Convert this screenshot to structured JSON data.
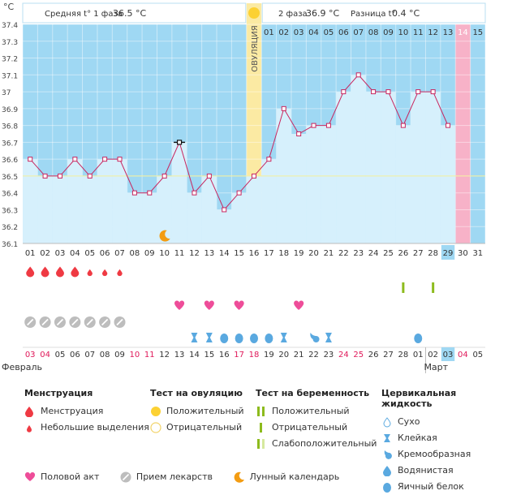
{
  "header": {
    "phase1_label": "Средняя t° 1 фаза",
    "phase1_value": "36.5 °C",
    "phase2_label": "2 фаза",
    "phase2_value": "36.9 °C",
    "diff_label": "Разница t°",
    "diff_value": "0.4 °C",
    "unit": "°C",
    "ovulation_label": "ОВУЛЯЦИЯ"
  },
  "colors": {
    "phase_bg": "#9fd8f3",
    "bar_fill": "#d6f0fc",
    "line": "#c8265f",
    "ovulation": "#fbeaa3",
    "highlight": "#f7b2c8",
    "today": "#9fd8f3",
    "menstruation": "#ef3a43",
    "sex": "#ee4d99",
    "pill": "#bdbdbd",
    "fluid": "#5aa9e0",
    "test_positive": "#8dbb1d",
    "moon": "#f39c12"
  },
  "chart_data": {
    "type": "line",
    "ylabel": "°C",
    "ylim": [
      36.1,
      37.4
    ],
    "yticks": [
      "36.1",
      "36.2",
      "36.3",
      "36.4",
      "36.5",
      "36.6",
      "36.7",
      "36.8",
      "36.9",
      "37",
      "37.1",
      "37.2",
      "37.3",
      "37.4"
    ],
    "cycle_days": [
      "01",
      "02",
      "03",
      "04",
      "05",
      "06",
      "07",
      "08",
      "09",
      "10",
      "11",
      "12",
      "13",
      "14",
      "15",
      "16",
      "17",
      "18",
      "19",
      "20",
      "21",
      "22",
      "23",
      "24",
      "25",
      "26",
      "27",
      "28",
      "29",
      "30",
      "31"
    ],
    "phase2_days": [
      "01",
      "02",
      "03",
      "04",
      "05",
      "06",
      "07",
      "08",
      "09",
      "10",
      "11",
      "12",
      "13",
      "14",
      "15"
    ],
    "temperatures": [
      36.6,
      36.5,
      36.5,
      36.6,
      36.5,
      36.6,
      36.6,
      36.4,
      36.4,
      36.5,
      36.7,
      36.4,
      36.5,
      36.3,
      36.4,
      36.5,
      36.6,
      36.9,
      36.75,
      36.8,
      36.8,
      37.0,
      37.1,
      37.0,
      37.0,
      36.8,
      37.0,
      37.0,
      36.8
    ],
    "coverline": 36.5,
    "ovulation_day": 16,
    "highlight_day": 30,
    "today_day": 29,
    "dates": [
      "03",
      "04",
      "05",
      "06",
      "07",
      "08",
      "09",
      "10",
      "11",
      "12",
      "13",
      "14",
      "15",
      "16",
      "17",
      "18",
      "19",
      "20",
      "21",
      "22",
      "23",
      "24",
      "25",
      "26",
      "27",
      "28",
      "01",
      "02",
      "03",
      "04",
      "05"
    ],
    "red_dates": [
      "03",
      "04",
      "10",
      "11",
      "17",
      "18",
      "24",
      "25",
      "03",
      "04"
    ],
    "month_left": "Февраль",
    "month_right": "Март",
    "menstruation": {
      "heavy": [
        1,
        2,
        3,
        4
      ],
      "light": [
        5,
        6,
        7
      ]
    },
    "pregnancy_tests": [
      26,
      28
    ],
    "sex_days": [
      11,
      13,
      15,
      19
    ],
    "pill_days": [
      1,
      2,
      3,
      4,
      5,
      6,
      7
    ],
    "moon_day": 10,
    "fluid": [
      {
        "day": 12,
        "type": "sticky"
      },
      {
        "day": 13,
        "type": "sticky"
      },
      {
        "day": 14,
        "type": "egg"
      },
      {
        "day": 15,
        "type": "egg"
      },
      {
        "day": 16,
        "type": "egg"
      },
      {
        "day": 17,
        "type": "egg"
      },
      {
        "day": 18,
        "type": "sticky"
      },
      {
        "day": 20,
        "type": "creamy"
      },
      {
        "day": 21,
        "type": "sticky"
      },
      {
        "day": 27,
        "type": "egg"
      }
    ]
  },
  "legend": {
    "menstruation": {
      "title": "Менструация",
      "items": [
        "Менструация",
        "Небольшие выделения"
      ]
    },
    "ovulation_test": {
      "title": "Тест на овуляцию",
      "items": [
        "Положительный",
        "Отрицательный"
      ]
    },
    "pregnancy_test": {
      "title": "Тест на беременность",
      "items": [
        "Положительный",
        "Отрицательный",
        "Слабоположительный"
      ]
    },
    "cervical": {
      "title": "Цервикальная жидкость",
      "items": [
        "Сухо",
        "Клейкая",
        "Кремообразная",
        "Водянистая",
        "Яичный белок"
      ]
    },
    "bottom": [
      "Половой акт",
      "Прием лекарств",
      "Лунный календарь"
    ]
  }
}
